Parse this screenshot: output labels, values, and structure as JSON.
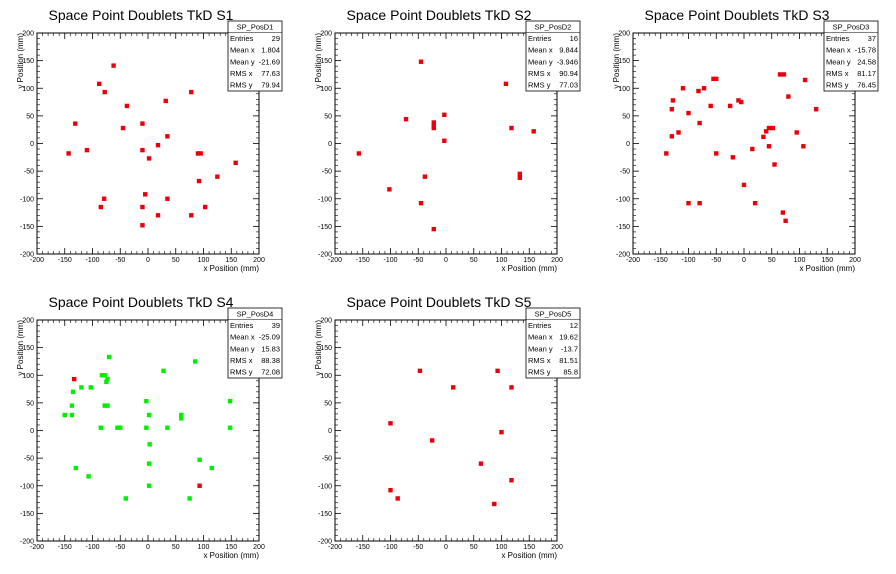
{
  "charts": [
    {
      "type": "scatter",
      "title": "Space Point Doublets TkD S1",
      "xlabel": "x Position (mm)",
      "ylabel": "y Position (mm)",
      "xlim": [
        -200,
        200
      ],
      "ylim": [
        -200,
        200
      ],
      "xticks": [
        "-200",
        "-150",
        "-100",
        "-50",
        "0",
        "50",
        "100",
        "150",
        "200"
      ],
      "yticks": [
        "-200",
        "-150",
        "-100",
        "-50",
        "0",
        "50",
        "100",
        "150",
        "200"
      ],
      "color": "#e8000b",
      "stats": {
        "name": "SP_PosD1",
        "rows": [
          [
            "Entries",
            "29"
          ],
          [
            "Mean x",
            "1.804"
          ],
          [
            "Mean y",
            "-21.69"
          ],
          [
            "RMS x",
            "77.63"
          ],
          [
            "RMS y",
            "79.94"
          ]
        ]
      },
      "points": [
        [
          -62,
          141
        ],
        [
          -88,
          108
        ],
        [
          -78,
          93
        ],
        [
          -38,
          68
        ],
        [
          -131,
          36
        ],
        [
          -110,
          -12
        ],
        [
          -143,
          -18
        ],
        [
          -45,
          28
        ],
        [
          -10,
          36
        ],
        [
          -10,
          -12
        ],
        [
          2,
          -27
        ],
        [
          18,
          -3
        ],
        [
          32,
          77
        ],
        [
          35,
          13
        ],
        [
          78,
          93
        ],
        [
          90,
          -18
        ],
        [
          95,
          -18
        ],
        [
          92,
          -68
        ],
        [
          125,
          -60
        ],
        [
          158,
          -35
        ],
        [
          -79,
          -100
        ],
        [
          -85,
          -115
        ],
        [
          -5,
          -92
        ],
        [
          -10,
          -115
        ],
        [
          -10,
          -148
        ],
        [
          18,
          -130
        ],
        [
          35,
          -100
        ],
        [
          78,
          -130
        ],
        [
          103,
          -115
        ]
      ]
    },
    {
      "type": "scatter",
      "title": "Space Point Doublets TkD S2",
      "xlabel": "x Position (mm)",
      "ylabel": "y Position (mm)",
      "xlim": [
        -200,
        200
      ],
      "ylim": [
        -200,
        200
      ],
      "xticks": [
        "-200",
        "-150",
        "-100",
        "-50",
        "0",
        "50",
        "100",
        "150",
        "200"
      ],
      "yticks": [
        "-200",
        "-150",
        "-100",
        "-50",
        "0",
        "50",
        "100",
        "150",
        "200"
      ],
      "color": "#e8000b",
      "stats": {
        "name": "SP_PosD2",
        "rows": [
          [
            "Entries",
            "16"
          ],
          [
            "Mean x",
            "9.844"
          ],
          [
            "Mean y",
            "-3.946"
          ],
          [
            "RMS x",
            "90.94"
          ],
          [
            "RMS y",
            "77.03"
          ]
        ]
      },
      "points": [
        [
          -45,
          148
        ],
        [
          108,
          108
        ],
        [
          -72,
          44
        ],
        [
          -22,
          38
        ],
        [
          -22,
          32
        ],
        [
          -22,
          28
        ],
        [
          -3,
          52
        ],
        [
          -3,
          5
        ],
        [
          118,
          28
        ],
        [
          158,
          22
        ],
        [
          -157,
          -18
        ],
        [
          -102,
          -83
        ],
        [
          -38,
          -60
        ],
        [
          -45,
          -108
        ],
        [
          -22,
          -155
        ],
        [
          133,
          -55
        ],
        [
          133,
          -62
        ]
      ]
    },
    {
      "type": "scatter",
      "title": "Space Point Doublets TkD S3",
      "xlabel": "x Position (mm)",
      "ylabel": "y Position (mm)",
      "xlim": [
        -200,
        200
      ],
      "ylim": [
        -200,
        200
      ],
      "xticks": [
        "-200",
        "-150",
        "-100",
        "-50",
        "0",
        "50",
        "100",
        "150",
        "200"
      ],
      "yticks": [
        "-200",
        "-150",
        "-100",
        "-50",
        "0",
        "50",
        "100",
        "150",
        "200"
      ],
      "color": "#e8000b",
      "stats": {
        "name": "SP_PosD3",
        "rows": [
          [
            "Entries",
            "37"
          ],
          [
            "Mean x",
            "-15.78"
          ],
          [
            "Mean y",
            "24.58"
          ],
          [
            "RMS x",
            "81.17"
          ],
          [
            "RMS y",
            "76.45"
          ]
        ]
      },
      "points": [
        [
          -128,
          78
        ],
        [
          -130,
          62
        ],
        [
          -118,
          20
        ],
        [
          -130,
          13
        ],
        [
          -140,
          -18
        ],
        [
          -110,
          100
        ],
        [
          -100,
          55
        ],
        [
          -82,
          95
        ],
        [
          -72,
          100
        ],
        [
          -55,
          117
        ],
        [
          -50,
          117
        ],
        [
          -60,
          68
        ],
        [
          -80,
          37
        ],
        [
          -25,
          68
        ],
        [
          -20,
          -25
        ],
        [
          -10,
          78
        ],
        [
          -5,
          75
        ],
        [
          -50,
          -18
        ],
        [
          0,
          -75
        ],
        [
          15,
          -10
        ],
        [
          20,
          -108
        ],
        [
          35,
          12
        ],
        [
          40,
          22
        ],
        [
          45,
          28
        ],
        [
          52,
          28
        ],
        [
          45,
          -5
        ],
        [
          55,
          -38
        ],
        [
          65,
          125
        ],
        [
          72,
          125
        ],
        [
          80,
          85
        ],
        [
          70,
          -125
        ],
        [
          75,
          -140
        ],
        [
          95,
          20
        ],
        [
          107,
          -5
        ],
        [
          110,
          115
        ],
        [
          130,
          62
        ],
        [
          -100,
          -108
        ],
        [
          -80,
          -108
        ]
      ]
    },
    {
      "type": "scatter",
      "title": "Space Point Doublets TkD S4",
      "xlabel": "x Position (mm)",
      "ylabel": "y Position (mm)",
      "xlim": [
        -200,
        200
      ],
      "ylim": [
        -200,
        200
      ],
      "xticks": [
        "-200",
        "-150",
        "-100",
        "-50",
        "0",
        "50",
        "100",
        "150",
        "200"
      ],
      "yticks": [
        "-200",
        "-150",
        "-100",
        "-50",
        "0",
        "50",
        "100",
        "150",
        "200"
      ],
      "color": "#00ee00",
      "stats": {
        "name": "SP_PosD4",
        "rows": [
          [
            "Entries",
            "39"
          ],
          [
            "Mean x",
            "-25.09"
          ],
          [
            "Mean y",
            "15.83"
          ],
          [
            "RMS x",
            "88.38"
          ],
          [
            "RMS y",
            "72.08"
          ]
        ]
      },
      "points": [
        [
          -133,
          93,
          "red"
        ],
        [
          -120,
          78
        ],
        [
          -103,
          78
        ],
        [
          -135,
          70
        ],
        [
          -137,
          45
        ],
        [
          -150,
          28
        ],
        [
          -137,
          28
        ],
        [
          -83,
          100
        ],
        [
          -78,
          100
        ],
        [
          -73,
          93
        ],
        [
          -75,
          88
        ],
        [
          -70,
          133
        ],
        [
          -78,
          45
        ],
        [
          -73,
          45
        ],
        [
          -85,
          5
        ],
        [
          -55,
          5
        ],
        [
          -50,
          5
        ],
        [
          -3,
          53
        ],
        [
          -3,
          5
        ],
        [
          2,
          28
        ],
        [
          3,
          -25
        ],
        [
          2,
          -60
        ],
        [
          2,
          -100
        ],
        [
          28,
          108
        ],
        [
          35,
          5
        ],
        [
          60,
          22
        ],
        [
          60,
          28
        ],
        [
          85,
          125
        ],
        [
          148,
          53
        ],
        [
          148,
          5
        ],
        [
          93,
          -53
        ],
        [
          115,
          -68
        ],
        [
          -130,
          -68
        ],
        [
          -107,
          -83
        ],
        [
          -40,
          -123
        ],
        [
          75,
          -123
        ],
        [
          93,
          -100,
          "red"
        ]
      ]
    },
    {
      "type": "scatter",
      "title": "Space Point Doublets TkD S5",
      "xlabel": "x Position (mm)",
      "ylabel": "y Position (mm)",
      "xlim": [
        -200,
        200
      ],
      "ylim": [
        -200,
        200
      ],
      "xticks": [
        "-200",
        "-150",
        "-100",
        "-50",
        "0",
        "50",
        "100",
        "150",
        "200"
      ],
      "yticks": [
        "-200",
        "-150",
        "-100",
        "-50",
        "0",
        "50",
        "100",
        "150",
        "200"
      ],
      "color": "#e8000b",
      "stats": {
        "name": "SP_PosD5",
        "rows": [
          [
            "Entries",
            "12"
          ],
          [
            "Mean x",
            "19.62"
          ],
          [
            "Mean y",
            "-13.7"
          ],
          [
            "RMS x",
            "81.51"
          ],
          [
            "RMS y",
            "85.8"
          ]
        ]
      },
      "points": [
        [
          -47,
          108
        ],
        [
          93,
          108
        ],
        [
          13,
          78
        ],
        [
          118,
          78
        ],
        [
          -100,
          13
        ],
        [
          -25,
          -18
        ],
        [
          100,
          -3
        ],
        [
          63,
          -60
        ],
        [
          -100,
          -108
        ],
        [
          -87,
          -123
        ],
        [
          87,
          -133
        ],
        [
          118,
          -90
        ]
      ]
    }
  ]
}
